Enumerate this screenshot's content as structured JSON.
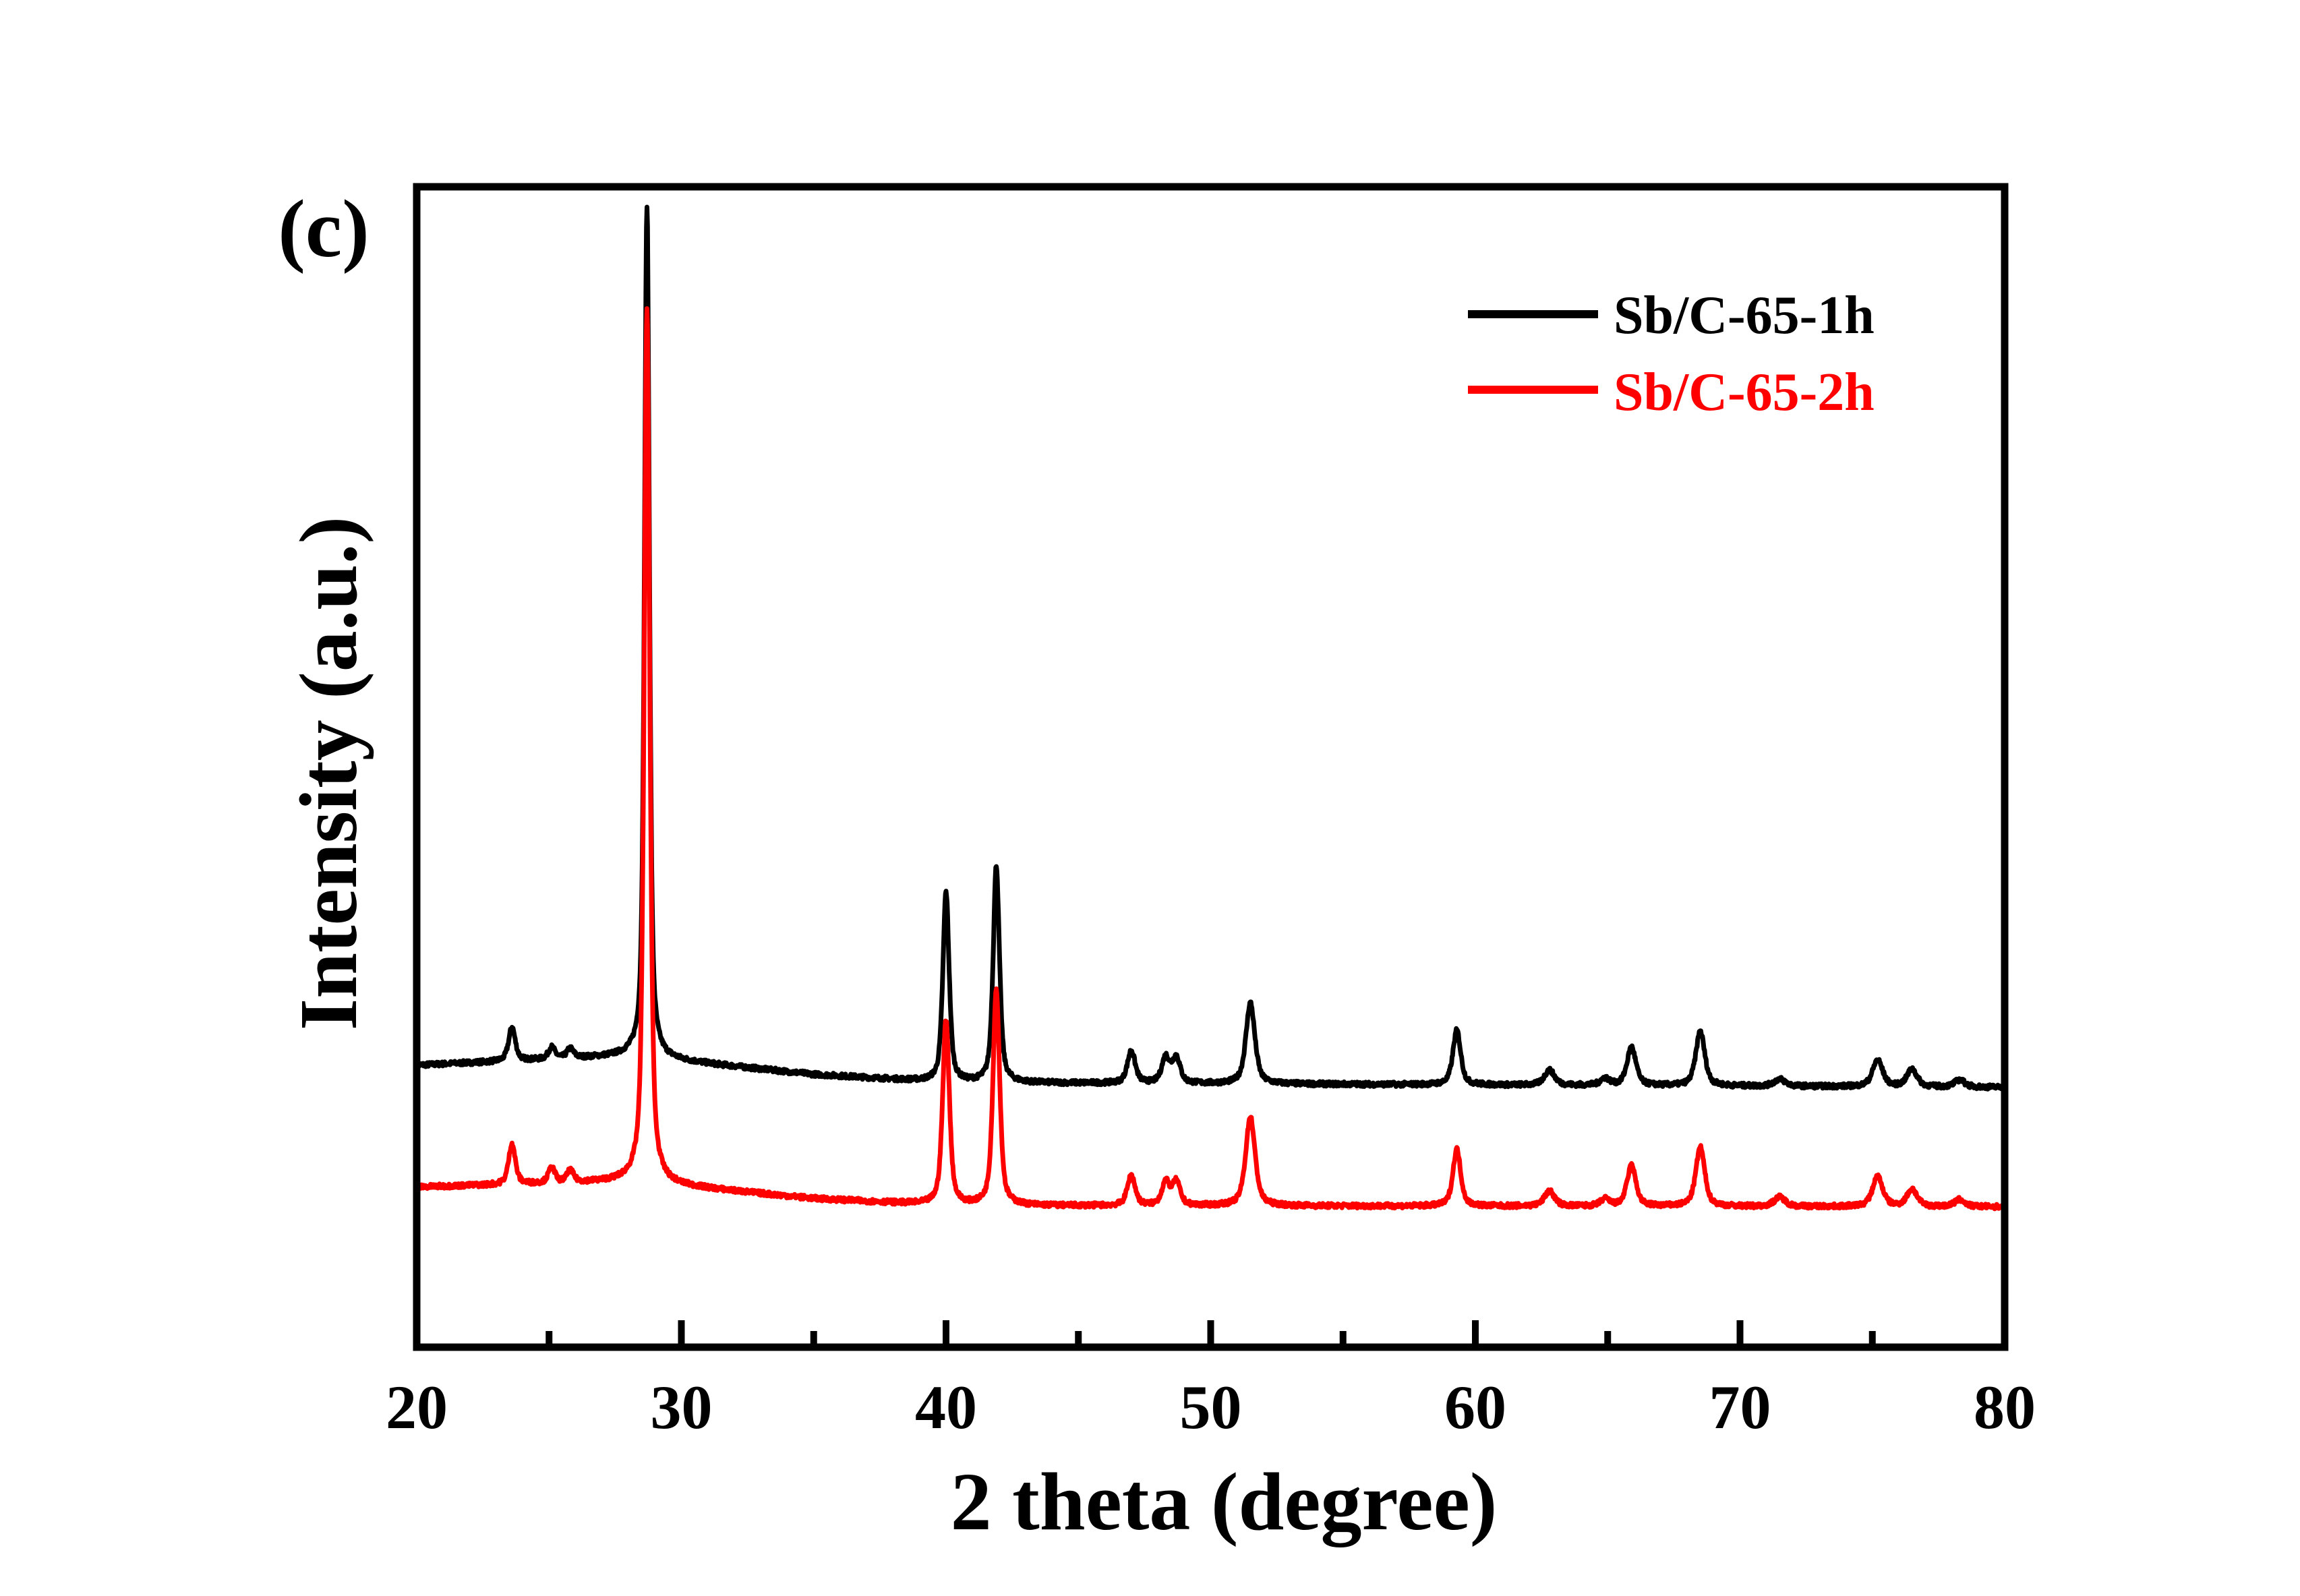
{
  "chart_data": {
    "type": "line",
    "panel_label": "(c)",
    "xlabel": "2 theta (degree)",
    "ylabel": "Intensity (a.u.)",
    "xlim": [
      20,
      80
    ],
    "ylim": [
      0,
      1000
    ],
    "x_ticks": [
      20,
      30,
      40,
      50,
      60,
      70,
      80
    ],
    "x_tick_labels": [
      "20",
      "30",
      "40",
      "50",
      "60",
      "70",
      "80"
    ],
    "x_minor_step": 5,
    "y_ticks_shown": false,
    "grid": false,
    "legend_position": "top-right",
    "series": [
      {
        "name": "Sb/C-65-1h",
        "color": "#000000",
        "baseline": [
          [
            20,
            243
          ],
          [
            28,
            251
          ],
          [
            35,
            235
          ],
          [
            40,
            228
          ],
          [
            80,
            224
          ]
        ],
        "peaks": [
          [
            23.6,
            29,
            0.3
          ],
          [
            25.1,
            10,
            0.3
          ],
          [
            25.8,
            8,
            0.3
          ],
          [
            28.7,
            735,
            0.22
          ],
          [
            40.0,
            164,
            0.28
          ],
          [
            41.9,
            187,
            0.28
          ],
          [
            47.0,
            28,
            0.35
          ],
          [
            48.3,
            22,
            0.35
          ],
          [
            48.7,
            22,
            0.35
          ],
          [
            51.5,
            70,
            0.4
          ],
          [
            59.3,
            47,
            0.35
          ],
          [
            62.8,
            13,
            0.45
          ],
          [
            64.9,
            6,
            0.4
          ],
          [
            65.9,
            33,
            0.4
          ],
          [
            68.5,
            47,
            0.4
          ],
          [
            71.5,
            6,
            0.5
          ],
          [
            75.2,
            23,
            0.45
          ],
          [
            76.5,
            15,
            0.45
          ],
          [
            78.3,
            6,
            0.45
          ]
        ]
      },
      {
        "name": "Sb/C-65-2h",
        "color": "#ff0000",
        "baseline": [
          [
            20,
            138
          ],
          [
            28,
            143
          ],
          [
            35,
            128
          ],
          [
            40,
            122
          ],
          [
            80,
            121
          ]
        ],
        "peaks": [
          [
            23.6,
            35,
            0.3
          ],
          [
            25.1,
            13,
            0.3
          ],
          [
            25.8,
            10,
            0.3
          ],
          [
            28.7,
            752,
            0.25
          ],
          [
            40.0,
            160,
            0.3
          ],
          [
            41.9,
            186,
            0.3
          ],
          [
            47.0,
            26,
            0.35
          ],
          [
            48.3,
            20,
            0.35
          ],
          [
            48.7,
            20,
            0.35
          ],
          [
            51.5,
            77,
            0.42
          ],
          [
            59.3,
            49,
            0.35
          ],
          [
            62.8,
            13,
            0.45
          ],
          [
            64.9,
            6,
            0.4
          ],
          [
            65.9,
            35,
            0.4
          ],
          [
            68.5,
            51,
            0.4
          ],
          [
            71.5,
            8,
            0.5
          ],
          [
            75.2,
            26,
            0.45
          ],
          [
            76.5,
            15,
            0.45
          ],
          [
            78.3,
            6,
            0.45
          ]
        ]
      }
    ]
  }
}
